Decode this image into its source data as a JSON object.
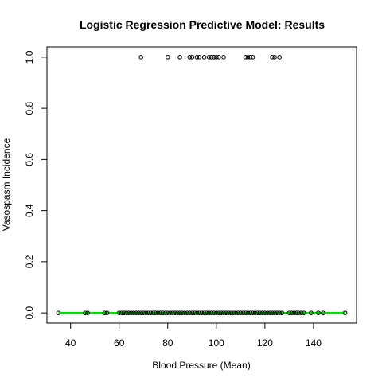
{
  "chart_data": {
    "type": "scatter",
    "title": "Logistic Regression Predictive Model: Results",
    "xlabel": "Blood Pressure (Mean)",
    "ylabel": "Vasospasm Incidence",
    "xlim": [
      35,
      153
    ],
    "ylim": [
      0,
      1
    ],
    "x_ticks": [
      40,
      60,
      80,
      100,
      120,
      140
    ],
    "y_ticks": [
      0.0,
      0.2,
      0.4,
      0.6,
      0.8,
      1.0
    ],
    "x_tick_labels": [
      "40",
      "60",
      "80",
      "100",
      "120",
      "140"
    ],
    "y_tick_labels": [
      "0.0",
      "0.2",
      "0.4",
      "0.6",
      "0.8",
      "1.0"
    ],
    "grid": false,
    "colors": {
      "points": "#000000",
      "fit_line": "#00e000",
      "axes": "#000000"
    },
    "series": [
      {
        "kind": "points",
        "y": 1,
        "x": [
          69,
          80,
          85,
          89,
          90,
          92,
          93,
          95,
          97,
          98,
          99,
          100,
          101,
          103,
          112,
          113,
          114,
          115,
          123,
          124,
          126
        ]
      },
      {
        "kind": "points",
        "y": 0,
        "x": [
          35,
          46,
          47,
          54,
          55,
          60,
          61,
          62,
          63,
          64,
          65,
          66,
          67,
          68,
          69,
          70,
          71,
          72,
          73,
          74,
          75,
          76,
          77,
          78,
          79,
          80,
          81,
          82,
          83,
          84,
          85,
          86,
          87,
          88,
          89,
          90,
          91,
          92,
          93,
          94,
          95,
          96,
          97,
          98,
          99,
          100,
          101,
          102,
          103,
          104,
          105,
          106,
          107,
          108,
          109,
          110,
          111,
          112,
          113,
          114,
          115,
          116,
          117,
          118,
          119,
          120,
          121,
          122,
          123,
          124,
          125,
          126,
          127,
          130,
          131,
          132,
          133,
          134,
          135,
          136,
          139,
          142,
          144,
          153
        ]
      },
      {
        "kind": "line",
        "x": [
          35,
          153
        ],
        "y": [
          0,
          0
        ]
      }
    ]
  }
}
